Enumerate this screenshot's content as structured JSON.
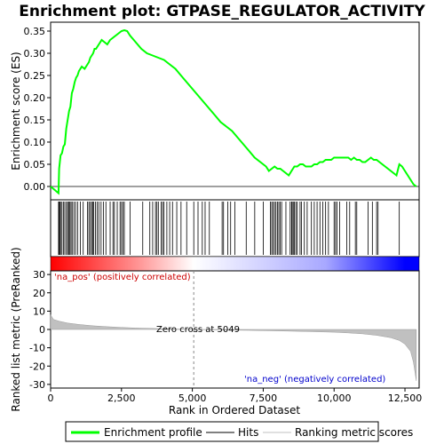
{
  "chart_data": {
    "type": "line",
    "title": "Enrichment plot: GTPASE_REGULATOR_ACTIVITY",
    "x_label": "Rank in Ordered Dataset",
    "x_range": [
      0,
      13000
    ],
    "x_ticks": [
      0,
      2500,
      5000,
      7500,
      10000,
      12500
    ],
    "x_tick_labels": [
      "0",
      "2,500",
      "5,000",
      "7,500",
      "10,000",
      "12,500"
    ],
    "enrichment_panel": {
      "y_label": "Enrichment score (ES)",
      "y_range": [
        -0.03,
        0.37
      ],
      "y_ticks": [
        0.0,
        0.05,
        0.1,
        0.15,
        0.2,
        0.25,
        0.3,
        0.35
      ],
      "y_tick_labels": [
        "0.00",
        "0.05",
        "0.10",
        "0.15",
        "0.20",
        "0.25",
        "0.30",
        "0.35"
      ],
      "series": [
        {
          "name": "Enrichment profile",
          "color": "#00ff00",
          "x": [
            0,
            280,
            300,
            350,
            400,
            450,
            500,
            550,
            600,
            650,
            700,
            750,
            800,
            850,
            900,
            950,
            1000,
            1100,
            1200,
            1300,
            1350,
            1400,
            1450,
            1500,
            1550,
            1600,
            1700,
            1800,
            1900,
            2000,
            2100,
            2200,
            2300,
            2400,
            2500,
            2600,
            2700,
            2800,
            3000,
            3200,
            3400,
            3600,
            3800,
            4000,
            4200,
            4400,
            4600,
            4800,
            5000,
            5200,
            5400,
            5600,
            5800,
            6000,
            6200,
            6400,
            6600,
            6800,
            7000,
            7200,
            7400,
            7600,
            7700,
            7800,
            7900,
            8000,
            8100,
            8200,
            8300,
            8400,
            8500,
            8600,
            8700,
            8800,
            8900,
            9000,
            9100,
            9200,
            9300,
            9400,
            9500,
            9600,
            9700,
            9800,
            9900,
            10000,
            10100,
            10200,
            10300,
            10400,
            10500,
            10600,
            10700,
            10800,
            10900,
            11000,
            11100,
            11200,
            11300,
            11400,
            11500,
            11600,
            11700,
            11800,
            11900,
            12000,
            12100,
            12200,
            12300,
            12400,
            12500,
            12600,
            12700,
            12800,
            12900
          ],
          "y": [
            0.0,
            -0.015,
            0.04,
            0.07,
            0.075,
            0.09,
            0.095,
            0.13,
            0.15,
            0.17,
            0.18,
            0.21,
            0.22,
            0.235,
            0.245,
            0.25,
            0.26,
            0.27,
            0.265,
            0.275,
            0.28,
            0.29,
            0.295,
            0.3,
            0.31,
            0.31,
            0.32,
            0.33,
            0.325,
            0.32,
            0.33,
            0.335,
            0.34,
            0.345,
            0.35,
            0.352,
            0.35,
            0.34,
            0.325,
            0.31,
            0.3,
            0.295,
            0.29,
            0.285,
            0.275,
            0.265,
            0.25,
            0.235,
            0.22,
            0.205,
            0.19,
            0.175,
            0.16,
            0.145,
            0.135,
            0.125,
            0.11,
            0.095,
            0.08,
            0.065,
            0.055,
            0.045,
            0.035,
            0.04,
            0.045,
            0.04,
            0.04,
            0.035,
            0.03,
            0.025,
            0.035,
            0.045,
            0.045,
            0.05,
            0.05,
            0.045,
            0.045,
            0.045,
            0.05,
            0.05,
            0.055,
            0.055,
            0.06,
            0.06,
            0.06,
            0.065,
            0.065,
            0.065,
            0.065,
            0.065,
            0.065,
            0.06,
            0.065,
            0.06,
            0.06,
            0.055,
            0.055,
            0.06,
            0.065,
            0.06,
            0.06,
            0.055,
            0.05,
            0.045,
            0.04,
            0.035,
            0.03,
            0.025,
            0.05,
            0.045,
            0.035,
            0.025,
            0.015,
            0.005,
            0.0
          ]
        }
      ]
    },
    "hits_panel": {
      "name": "Hits",
      "color": "#000000",
      "hit_positions": [
        280,
        300,
        320,
        350,
        400,
        450,
        500,
        560,
        600,
        640,
        680,
        720,
        760,
        820,
        880,
        950,
        1050,
        1150,
        1300,
        1350,
        1400,
        1450,
        1480,
        1520,
        1580,
        1640,
        1700,
        1780,
        1860,
        1950,
        2100,
        2200,
        2250,
        2350,
        2450,
        2500,
        2550,
        2600,
        2800,
        3250,
        3500,
        3600,
        3700,
        3750,
        3800,
        3900,
        3950,
        4000,
        4100,
        4200,
        4300,
        4450,
        4600,
        4800,
        5050,
        5200,
        5350,
        5450,
        5600,
        6050,
        6100,
        6250,
        6350,
        6500,
        6900,
        7200,
        7500,
        7750,
        7800,
        7850,
        7900,
        7950,
        8000,
        8050,
        8100,
        8150,
        8300,
        8450,
        8500,
        8520,
        8560,
        8600,
        8650,
        8700,
        8800,
        8850,
        8950,
        9050,
        9200,
        9300,
        9400,
        9500,
        9600,
        9700,
        9800,
        10000,
        10050,
        10100,
        10200,
        10450,
        10550,
        10750,
        10800,
        11200,
        11350,
        11500,
        11550,
        12300
      ]
    },
    "ranked_metric_panel": {
      "name": "Ranking metric scores",
      "y_label": "Ranked list metric (PreRanked)",
      "y_range": [
        -32,
        32
      ],
      "y_ticks": [
        -30,
        -20,
        -10,
        0,
        10,
        20,
        30
      ],
      "y_tick_labels": [
        "-30",
        "-20",
        "-10",
        "0",
        "10",
        "20",
        "30"
      ],
      "fill_color": "#c0c0c0",
      "x": [
        0,
        100,
        300,
        600,
        1000,
        1500,
        2000,
        2500,
        3000,
        4000,
        5049,
        6000,
        7000,
        8000,
        9000,
        10000,
        10500,
        11000,
        11500,
        12000,
        12300,
        12500,
        12700,
        12800,
        12900
      ],
      "y": [
        8,
        5.5,
        4.5,
        3.5,
        2.7,
        2.0,
        1.5,
        1.1,
        0.8,
        0.4,
        0.0,
        -0.3,
        -0.5,
        -0.8,
        -1.1,
        -1.5,
        -1.9,
        -2.4,
        -3.2,
        -4.5,
        -6.0,
        -8.0,
        -12.0,
        -18.0,
        -28.0
      ],
      "annotations": {
        "pos": "'na_pos' (positively correlated)",
        "neg": "'na_neg' (negatively correlated)",
        "zero": "Zero cross at 5049",
        "zero_rank": 5049
      }
    },
    "color_bar": {
      "stops": [
        {
          "rank": 0,
          "color": "#ff0000"
        },
        {
          "rank": 3200,
          "color": "#ff9a9a"
        },
        {
          "rank": 5049,
          "color": "#ffffff"
        },
        {
          "rank": 9700,
          "color": "#a8a8ff"
        },
        {
          "rank": 12500,
          "color": "#0000ff"
        }
      ]
    },
    "legend": {
      "position": "bottom",
      "items": [
        {
          "label": "Enrichment profile",
          "color": "#00ff00",
          "kind": "line-thick"
        },
        {
          "label": "Hits",
          "color": "#000000",
          "kind": "line-thin"
        },
        {
          "label": "Ranking metric scores",
          "color": "#c0c0c0",
          "kind": "line-thin"
        }
      ]
    }
  }
}
